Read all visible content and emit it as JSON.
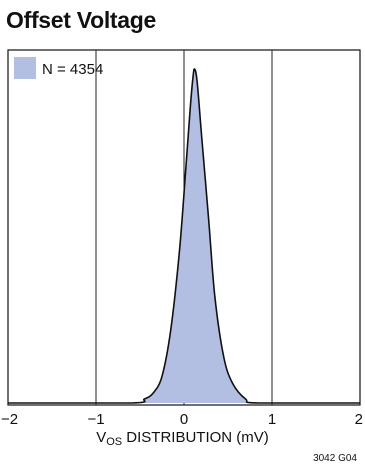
{
  "chart_data": {
    "type": "area",
    "title": "Offset Voltage",
    "xlabel": {
      "main": "V",
      "subscript": "OS",
      "rest": " DISTRIBUTION (mV)"
    },
    "ylabel": "",
    "xlim": [
      -2,
      2
    ],
    "xticks": [
      -2,
      -1,
      0,
      1,
      2
    ],
    "tick_labels": [
      "−2",
      "−1",
      "0",
      "1",
      "2"
    ],
    "grid": {
      "vertical": true,
      "horizontal": false
    },
    "legend": {
      "position": "top-left",
      "entries": [
        {
          "label": "N = 4354",
          "color": "#b2bfe2"
        }
      ]
    },
    "series": [
      {
        "name": "N = 4354",
        "fill_color": "#b2bfe2",
        "stroke_color": "#111111",
        "points": [
          {
            "x": -2.0,
            "y": 0.0
          },
          {
            "x": -0.6,
            "y": 0.0
          },
          {
            "x": -0.45,
            "y": 0.012
          },
          {
            "x": -0.35,
            "y": 0.03
          },
          {
            "x": -0.25,
            "y": 0.08
          },
          {
            "x": -0.15,
            "y": 0.22
          },
          {
            "x": -0.05,
            "y": 0.46
          },
          {
            "x": 0.02,
            "y": 0.7
          },
          {
            "x": 0.07,
            "y": 0.88
          },
          {
            "x": 0.1,
            "y": 0.97
          },
          {
            "x": 0.12,
            "y": 1.0
          },
          {
            "x": 0.15,
            "y": 0.96
          },
          {
            "x": 0.2,
            "y": 0.8
          },
          {
            "x": 0.28,
            "y": 0.55
          },
          {
            "x": 0.35,
            "y": 0.32
          },
          {
            "x": 0.45,
            "y": 0.14
          },
          {
            "x": 0.55,
            "y": 0.06
          },
          {
            "x": 0.7,
            "y": 0.012
          },
          {
            "x": 0.85,
            "y": 0.0
          },
          {
            "x": 2.0,
            "y": 0.0
          }
        ]
      }
    ]
  },
  "figure_id": "3042 G04"
}
